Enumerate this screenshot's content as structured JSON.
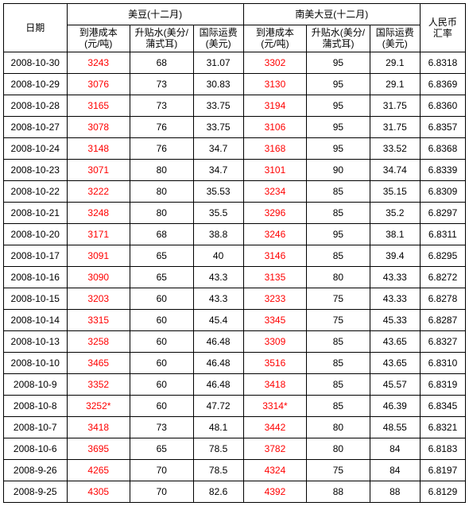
{
  "headers": {
    "date": "日期",
    "group1": "美豆(十二月)",
    "group2": "南美大豆(十二月)",
    "rate_l1": "人民币",
    "rate_l2": "汇率",
    "cost_l1": "到港成本",
    "cost_l2": "(元/吨)",
    "basis_l1": "升贴水(美分/",
    "basis_l2": "蒲式耳)",
    "freight_l1": "国际运费",
    "freight_l2": "(美元)"
  },
  "rows": [
    {
      "date": "2008-10-30",
      "a1": "3243",
      "a2": "68",
      "a3": "31.07",
      "b1": "3302",
      "b2": "95",
      "b3": "29.1",
      "rate": "6.8318"
    },
    {
      "date": "2008-10-29",
      "a1": "3076",
      "a2": "73",
      "a3": "30.83",
      "b1": "3130",
      "b2": "95",
      "b3": "29.1",
      "rate": "6.8369"
    },
    {
      "date": "2008-10-28",
      "a1": "3165",
      "a2": "73",
      "a3": "33.75",
      "b1": "3194",
      "b2": "95",
      "b3": "31.75",
      "rate": "6.8360"
    },
    {
      "date": "2008-10-27",
      "a1": "3078",
      "a2": "76",
      "a3": "33.75",
      "b1": "3106",
      "b2": "95",
      "b3": "31.75",
      "rate": "6.8357"
    },
    {
      "date": "2008-10-24",
      "a1": "3148",
      "a2": "76",
      "a3": "34.7",
      "b1": "3168",
      "b2": "95",
      "b3": "33.52",
      "rate": "6.8368"
    },
    {
      "date": "2008-10-23",
      "a1": "3071",
      "a2": "80",
      "a3": "34.7",
      "b1": "3101",
      "b2": "90",
      "b3": "34.74",
      "rate": "6.8339"
    },
    {
      "date": "2008-10-22",
      "a1": "3222",
      "a2": "80",
      "a3": "35.53",
      "b1": "3234",
      "b2": "85",
      "b3": "35.15",
      "rate": "6.8309"
    },
    {
      "date": "2008-10-21",
      "a1": "3248",
      "a2": "80",
      "a3": "35.5",
      "b1": "3296",
      "b2": "85",
      "b3": "35.2",
      "rate": "6.8297"
    },
    {
      "date": "2008-10-20",
      "a1": "3171",
      "a2": "68",
      "a3": "38.8",
      "b1": "3246",
      "b2": "95",
      "b3": "38.1",
      "rate": "6.8311"
    },
    {
      "date": "2008-10-17",
      "a1": "3091",
      "a2": "65",
      "a3": "40",
      "b1": "3146",
      "b2": "85",
      "b3": "39.4",
      "rate": "6.8295"
    },
    {
      "date": "2008-10-16",
      "a1": "3090",
      "a2": "65",
      "a3": "43.3",
      "b1": "3135",
      "b2": "80",
      "b3": "43.33",
      "rate": "6.8272"
    },
    {
      "date": "2008-10-15",
      "a1": "3203",
      "a2": "60",
      "a3": "43.3",
      "b1": "3233",
      "b2": "75",
      "b3": "43.33",
      "rate": "6.8278"
    },
    {
      "date": "2008-10-14",
      "a1": "3315",
      "a2": "60",
      "a3": "45.4",
      "b1": "3345",
      "b2": "75",
      "b3": "45.33",
      "rate": "6.8287"
    },
    {
      "date": "2008-10-13",
      "a1": "3258",
      "a2": "60",
      "a3": "46.48",
      "b1": "3309",
      "b2": "85",
      "b3": "43.65",
      "rate": "6.8327"
    },
    {
      "date": "2008-10-10",
      "a1": "3465",
      "a2": "60",
      "a3": "46.48",
      "b1": "3516",
      "b2": "85",
      "b3": "43.65",
      "rate": "6.8310"
    },
    {
      "date": "2008-10-9",
      "a1": "3352",
      "a2": "60",
      "a3": "46.48",
      "b1": "3418",
      "b2": "85",
      "b3": "45.57",
      "rate": "6.8319"
    },
    {
      "date": "2008-10-8",
      "a1": "3252*",
      "a2": "60",
      "a3": "47.72",
      "b1": "3314*",
      "b2": "85",
      "b3": "46.39",
      "rate": "6.8345"
    },
    {
      "date": "2008-10-7",
      "a1": "3418",
      "a2": "73",
      "a3": "48.1",
      "b1": "3442",
      "b2": "80",
      "b3": "48.55",
      "rate": "6.8321"
    },
    {
      "date": "2008-10-6",
      "a1": "3695",
      "a2": "65",
      "a3": "78.5",
      "b1": "3782",
      "b2": "80",
      "b3": "84",
      "rate": "6.8183"
    },
    {
      "date": "2008-9-26",
      "a1": "4265",
      "a2": "70",
      "a3": "78.5",
      "b1": "4324",
      "b2": "75",
      "b3": "84",
      "rate": "6.8197"
    },
    {
      "date": "2008-9-25",
      "a1": "4305",
      "a2": "70",
      "a3": "82.6",
      "b1": "4392",
      "b2": "88",
      "b3": "88",
      "rate": "6.8129"
    }
  ]
}
